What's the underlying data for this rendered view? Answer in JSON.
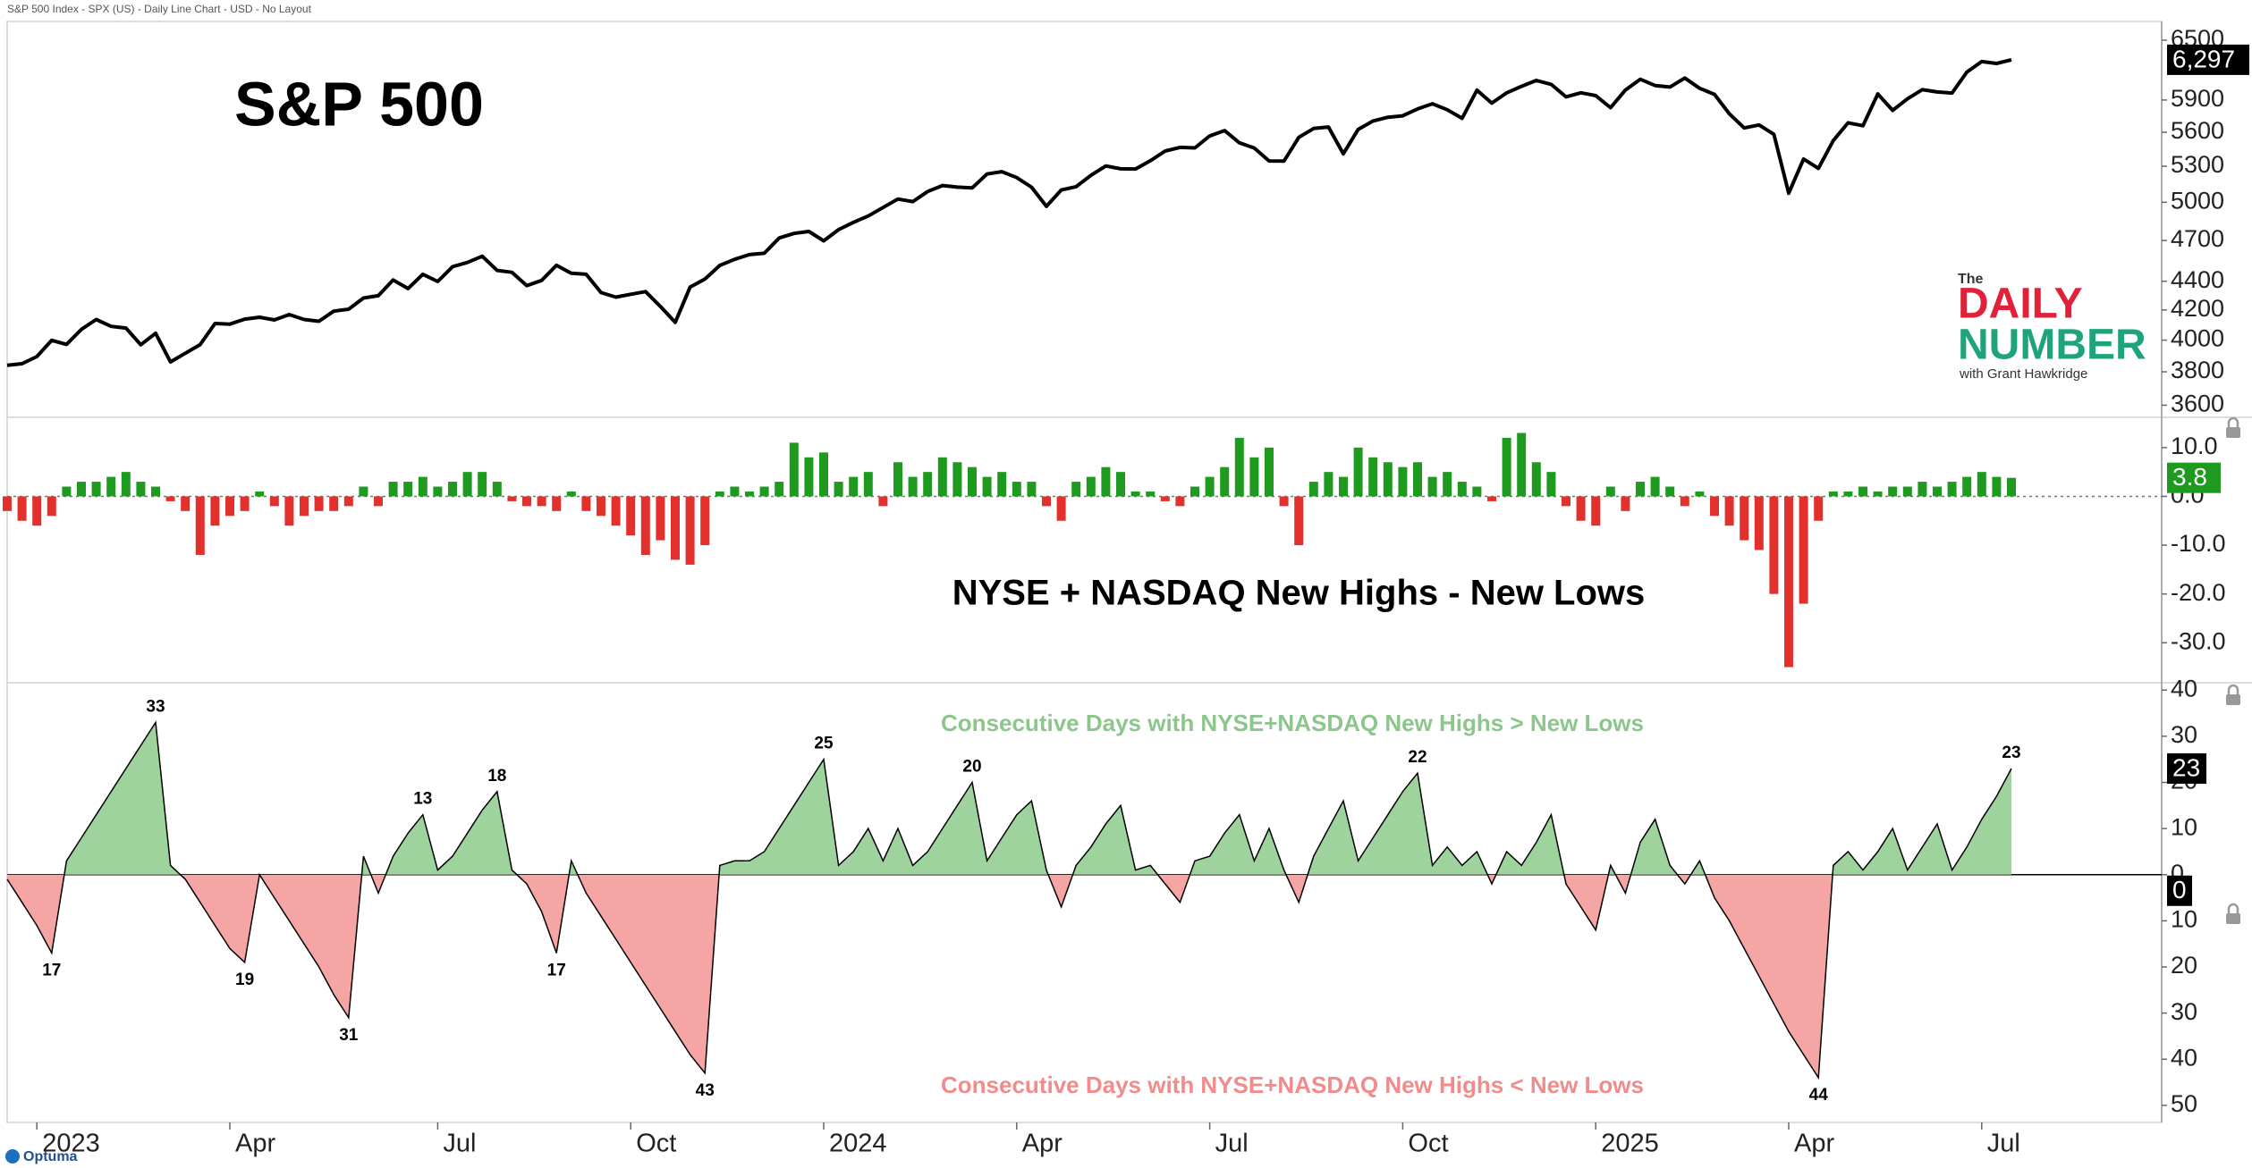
{
  "header": "S&P 500 Index - SPX (US) - Daily Line Chart - USD - No Layout",
  "footer_brand": "Optuma",
  "logo": {
    "prefix": "The",
    "word1": "DAILY",
    "word2": "NUMBER",
    "byline": "with Grant Hawkridge"
  },
  "chart_data": [
    {
      "type": "line",
      "title": "S&P 500",
      "color": "#000000",
      "log_scale": true,
      "ylim": [
        3530,
        6700
      ],
      "yticks": [
        3600,
        3800,
        4000,
        4200,
        4400,
        4700,
        5000,
        5300,
        5600,
        5900,
        6500
      ],
      "last_value_label": "6,297",
      "values": [
        3840,
        3850,
        3895,
        3999,
        3972,
        4070,
        4136,
        4090,
        4079,
        3970,
        4045,
        3861,
        3916,
        3971,
        4109,
        4105,
        4138,
        4151,
        4133,
        4169,
        4136,
        4124,
        4192,
        4205,
        4282,
        4298,
        4409,
        4348,
        4450,
        4398,
        4505,
        4536,
        4582,
        4478,
        4464,
        4369,
        4406,
        4515,
        4457,
        4450,
        4320,
        4288,
        4308,
        4327,
        4224,
        4117,
        4358,
        4415,
        4514,
        4559,
        4594,
        4604,
        4719,
        4754,
        4769,
        4697,
        4783,
        4840,
        4890,
        4958,
        5026,
        5005,
        5088,
        5137,
        5124,
        5117,
        5234,
        5254,
        5204,
        5123,
        4967,
        5100,
        5128,
        5223,
        5303,
        5278,
        5277,
        5347,
        5432,
        5465,
        5460,
        5567,
        5615,
        5505,
        5459,
        5346,
        5344,
        5554,
        5634,
        5648,
        5408,
        5626,
        5703,
        5738,
        5751,
        5815,
        5864,
        5808,
        5728,
        5995,
        5870,
        5969,
        6032,
        6090,
        6051,
        5930,
        5970,
        5942,
        5827,
        5996,
        6101,
        6040,
        6025,
        6114,
        6013,
        5954,
        5770,
        5639,
        5667,
        5581,
        5074,
        5363,
        5282,
        5525,
        5686,
        5659,
        5958,
        5802,
        5911,
        6000,
        5977,
        5967,
        6173,
        6279,
        6260,
        6297
      ]
    },
    {
      "type": "bar",
      "title": "NYSE + NASDAQ New Highs - New Lows",
      "up_color": "#1e9b1e",
      "down_color": "#e2302c",
      "label_color": "#1e9b1e",
      "zero_line": true,
      "ylim": [
        -38.2,
        16.2
      ],
      "yticks": [
        {
          "value": 10,
          "label": "10.0"
        },
        {
          "value": 0,
          "label": "0.0"
        },
        {
          "value": -10,
          "label": "-10.0"
        },
        {
          "value": -20,
          "label": "-20.0"
        },
        {
          "value": -30,
          "label": "-30.0"
        }
      ],
      "values": [
        -3,
        -5,
        -6,
        -4,
        2,
        3,
        3,
        4,
        5,
        3,
        2,
        -1,
        -3,
        -12,
        -6,
        -4,
        -3,
        1,
        -2,
        -6,
        -4,
        -3,
        -3,
        -2,
        2,
        -2,
        3,
        3,
        4,
        2,
        3,
        5,
        5,
        3,
        -1,
        -2,
        -2,
        -3,
        1,
        -3,
        -4,
        -6,
        -8,
        -12,
        -9,
        -13,
        -14,
        -10,
        1,
        2,
        1,
        2,
        3,
        11,
        8,
        9,
        3,
        4,
        5,
        -2,
        7,
        4,
        5,
        8,
        7,
        6,
        4,
        5,
        3,
        3,
        -2,
        -5,
        3,
        4,
        6,
        5,
        1,
        1,
        -1,
        -2,
        2,
        4,
        6,
        12,
        8,
        10,
        -2,
        -10,
        3,
        5,
        4,
        10,
        8,
        7,
        6,
        7,
        4,
        5,
        3,
        2,
        -1,
        12,
        13,
        7,
        5,
        -2,
        -5,
        -6,
        2,
        -3,
        3,
        4,
        2,
        -2,
        1,
        -4,
        -6,
        -9,
        -11,
        -20,
        -35,
        -22,
        -5,
        1,
        1,
        2,
        1,
        2,
        2,
        3,
        2,
        3,
        4,
        5,
        4,
        3.8
      ]
    },
    {
      "type": "area",
      "positive_color": "#9ed39e",
      "negative_color": "#f6a5a5",
      "color": "#000000",
      "zero_line": true,
      "annotations": [
        {
          "text": "Consecutive Days with NYSE+NASDAQ New Highs > New Lows",
          "color": "#8cc68c",
          "position": "top"
        },
        {
          "text": "Consecutive Days with NYSE+NASDAQ New Highs < New Lows",
          "color": "#f28b8b",
          "position": "bottom"
        }
      ],
      "new_lows_streak": 0,
      "ylim": [
        -53.7,
        41.6
      ],
      "yticks": [
        40,
        30,
        20,
        10,
        0,
        {
          "value": -10,
          "label": "10"
        },
        {
          "value": -20,
          "label": "20"
        },
        {
          "value": -30,
          "label": "30"
        },
        {
          "value": -40,
          "label": "40"
        },
        {
          "value": -50,
          "label": "50"
        }
      ],
      "categories": [
        null,
        null,
        "2023",
        null,
        null,
        null,
        null,
        null,
        null,
        null,
        null,
        null,
        null,
        null,
        null,
        "Apr",
        null,
        null,
        null,
        null,
        null,
        null,
        null,
        null,
        null,
        null,
        null,
        null,
        null,
        "Jul",
        null,
        null,
        null,
        null,
        null,
        null,
        null,
        null,
        null,
        null,
        null,
        null,
        "Oct",
        null,
        null,
        null,
        null,
        null,
        null,
        null,
        null,
        null,
        null,
        null,
        null,
        "2024",
        null,
        null,
        null,
        null,
        null,
        null,
        null,
        null,
        null,
        null,
        null,
        null,
        "Apr",
        null,
        null,
        null,
        null,
        null,
        null,
        null,
        null,
        null,
        null,
        null,
        null,
        "Jul",
        null,
        null,
        null,
        null,
        null,
        null,
        null,
        null,
        null,
        null,
        null,
        null,
        "Oct",
        null,
        null,
        null,
        null,
        null,
        null,
        null,
        null,
        null,
        null,
        null,
        null,
        "2025",
        null,
        null,
        null,
        null,
        null,
        null,
        null,
        null,
        null,
        null,
        null,
        null,
        "Apr",
        null,
        null,
        null,
        null,
        null,
        null,
        null,
        null,
        null,
        null,
        null,
        null,
        "Jul",
        null,
        null
      ],
      "values": [
        -1,
        -6,
        -11,
        -17,
        3,
        8,
        13,
        18,
        23,
        28,
        33,
        2,
        -1,
        -6,
        -11,
        -16,
        -19,
        0,
        -5,
        -10,
        -15,
        -20,
        -26,
        -31,
        4,
        -4,
        4,
        9,
        13,
        1,
        4,
        9,
        14,
        18,
        1,
        -2,
        -8,
        -17,
        3,
        -4,
        -9,
        -14,
        -19,
        -24,
        -29,
        -34,
        -39,
        -43,
        2,
        3,
        3,
        5,
        10,
        15,
        20,
        25,
        2,
        5,
        10,
        3,
        10,
        2,
        5,
        10,
        15,
        20,
        3,
        8,
        13,
        16,
        1,
        -7,
        2,
        6,
        11,
        15,
        1,
        2,
        -2,
        -6,
        3,
        4,
        9,
        13,
        3,
        10,
        1,
        -6,
        4,
        10,
        16,
        3,
        8,
        13,
        18,
        22,
        2,
        6,
        2,
        5,
        -2,
        5,
        2,
        7,
        13,
        -2,
        -7,
        -12,
        2,
        -4,
        7,
        12,
        2,
        -2,
        3,
        -5,
        -10,
        -16,
        -22,
        -28,
        -34,
        -39,
        -44,
        2,
        5,
        1,
        5,
        10,
        1,
        6,
        11,
        1,
        6,
        12,
        17,
        23
      ],
      "value_labels": [
        null,
        null,
        null,
        "17",
        null,
        null,
        null,
        null,
        null,
        null,
        "33",
        null,
        null,
        null,
        null,
        null,
        "19",
        null,
        null,
        null,
        null,
        null,
        null,
        "31",
        null,
        null,
        null,
        null,
        "13",
        null,
        null,
        null,
        null,
        "18",
        null,
        null,
        null,
        "17",
        null,
        null,
        null,
        null,
        null,
        null,
        null,
        null,
        null,
        "43",
        null,
        null,
        null,
        null,
        null,
        null,
        null,
        "25",
        null,
        null,
        null,
        null,
        null,
        null,
        null,
        null,
        null,
        "20",
        null,
        null,
        null,
        null,
        null,
        null,
        null,
        null,
        null,
        null,
        null,
        null,
        null,
        null,
        null,
        null,
        null,
        null,
        null,
        null,
        null,
        null,
        null,
        null,
        null,
        null,
        null,
        null,
        null,
        "22",
        null,
        null,
        null,
        null,
        null,
        null,
        null,
        null,
        null,
        null,
        null,
        null,
        null,
        null,
        null,
        null,
        null,
        null,
        null,
        null,
        null,
        null,
        null,
        null,
        null,
        null,
        "44",
        null,
        null,
        null,
        null,
        null,
        null,
        null,
        null,
        null,
        null,
        null,
        null,
        "23"
      ]
    }
  ]
}
